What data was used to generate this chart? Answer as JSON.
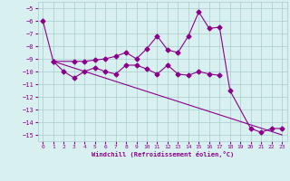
{
  "line1_x": [
    0,
    1,
    3,
    4,
    5,
    6,
    7,
    8,
    9,
    10,
    11,
    12,
    13,
    14,
    15,
    16,
    17,
    18,
    20,
    21,
    22,
    23
  ],
  "line1_y": [
    -6.0,
    -9.2,
    -9.2,
    -9.2,
    -9.1,
    -9.0,
    -8.8,
    -8.5,
    -9.0,
    -8.2,
    -7.2,
    -8.3,
    -8.5,
    -7.2,
    -5.3,
    -6.6,
    -6.5,
    -11.5,
    -14.5,
    -14.8,
    -14.5,
    -14.5
  ],
  "line2_x": [
    1,
    2,
    3,
    4,
    5,
    6,
    7,
    8,
    9,
    10,
    11,
    12,
    13,
    14,
    15,
    16,
    17
  ],
  "line2_y": [
    -9.2,
    -10.0,
    -10.5,
    -10.0,
    -9.7,
    -10.0,
    -10.2,
    -9.5,
    -9.5,
    -9.8,
    -10.2,
    -9.5,
    -10.2,
    -10.3,
    -10.0,
    -10.2,
    -10.3
  ],
  "line3_x": [
    1,
    23
  ],
  "line3_y": [
    -9.2,
    -15.0
  ],
  "line_color": "#8B008B",
  "bg_color": "#d8f0f0",
  "grid_color": "#aacccc",
  "xlabel": "Windchill (Refroidissement éolien,°C)",
  "ylim": [
    -15.5,
    -4.5
  ],
  "xlim": [
    -0.5,
    23.5
  ],
  "yticks": [
    -15,
    -14,
    -13,
    -12,
    -11,
    -10,
    -9,
    -8,
    -7,
    -6,
    -5
  ],
  "xticks": [
    0,
    1,
    2,
    3,
    4,
    5,
    6,
    7,
    8,
    9,
    10,
    11,
    12,
    13,
    14,
    15,
    16,
    17,
    18,
    19,
    20,
    21,
    22,
    23
  ],
  "marker": "D",
  "markersize": 2.5,
  "linewidth": 0.8
}
